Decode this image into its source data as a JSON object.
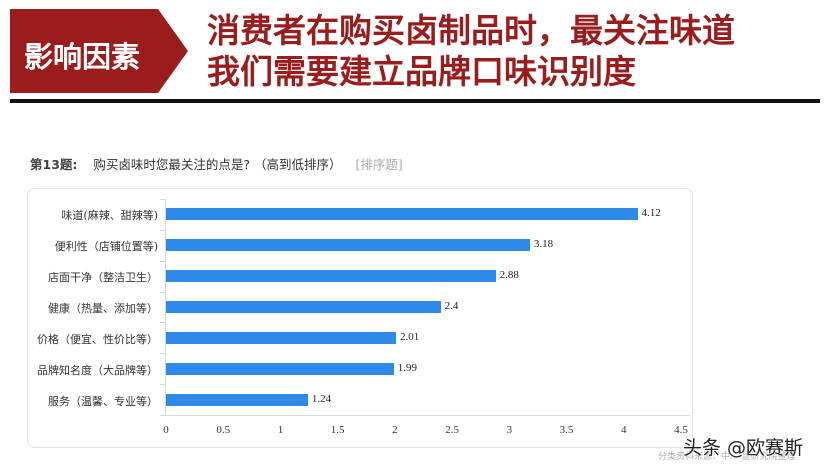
{
  "header": {
    "badge_label": "影响因素",
    "badge_color": "#9b1c1c",
    "headline_line1": "消费者在购买卤制品时，最关注味道",
    "headline_line2": "我们需要建立品牌口味识别度",
    "headline_color": "#9b1c1c"
  },
  "question": {
    "number": "第13题:",
    "text": "购买卤味时您最关注的点是? （高到低排序）",
    "type": "[排序题]"
  },
  "chart_data": {
    "type": "bar",
    "orientation": "horizontal",
    "title": "第13题: 购买卤味时您最关注的点是? （高到低排序） [排序题]",
    "categories": [
      "味道(麻辣、甜辣等)",
      "便利性（店铺位置等)",
      "店面干净（整洁卫生）",
      "健康（热量、添加等）",
      "价格（便宜、性价比等）",
      "品牌知名度（大品牌等）",
      "服务（温馨、专业等）"
    ],
    "values": [
      4.12,
      3.18,
      2.88,
      2.4,
      2.01,
      1.99,
      1.24
    ],
    "value_labels": [
      "4.12",
      "3.18",
      "2.88",
      "2.4",
      "2.01",
      "1.99",
      "1.24"
    ],
    "xlabel": "",
    "ylabel": "",
    "xlim": [
      0,
      4.5
    ],
    "x_ticks": [
      "0",
      "0.5",
      "1",
      "1.5",
      "2",
      "2.5",
      "3",
      "3.5",
      "4",
      "4.5"
    ],
    "bar_color": "#2f89e8",
    "grid": false,
    "legend": "none"
  },
  "footer": {
    "source": "分类资料来源：中... 显研究院整理",
    "watermark": "头条 @欧赛斯"
  }
}
